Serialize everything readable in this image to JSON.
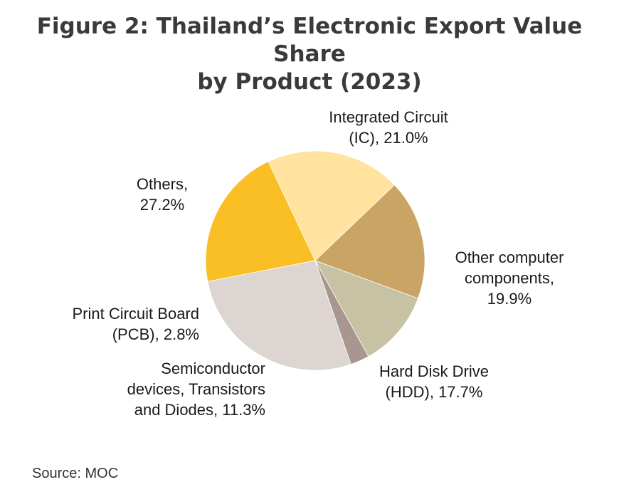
{
  "title_line1": "Figure 2: Thailand’s Electronic Export Value Share",
  "title_line2": "by Product (2023)",
  "source": "Source: MOC",
  "chart_data": {
    "type": "pie",
    "title": "Figure 2: Thailand’s Electronic Export Value Share by Product (2023)",
    "unit": "%",
    "slices": [
      {
        "label": "Integrated Circuit (IC)",
        "value": 21.0,
        "label_lines": [
          "Integrated Circuit",
          "(IC), 21.0%"
        ],
        "color": "#FBBF26"
      },
      {
        "label": "Other computer components",
        "value": 19.9,
        "label_lines": [
          "Other computer",
          "components,",
          "19.9%"
        ],
        "color": "#FFE39E"
      },
      {
        "label": "Hard Disk Drive (HDD)",
        "value": 17.7,
        "label_lines": [
          "Hard Disk Drive",
          "(HDD), 17.7%"
        ],
        "color": "#C9A465"
      },
      {
        "label": "Semiconductor devices, Transistors and Diodes",
        "value": 11.3,
        "label_lines": [
          "Semiconductor",
          "devices, Transistors",
          "and Diodes, 11.3%"
        ],
        "color": "#C8C2A5"
      },
      {
        "label": "Print Circuit Board (PCB)",
        "value": 2.8,
        "label_lines": [
          "Print Circuit Board",
          "(PCB), 2.8%"
        ],
        "color": "#A9968E"
      },
      {
        "label": "Others",
        "value": 27.2,
        "label_lines": [
          "Others,",
          "27.2%"
        ],
        "color": "#DDD5D1"
      }
    ]
  }
}
